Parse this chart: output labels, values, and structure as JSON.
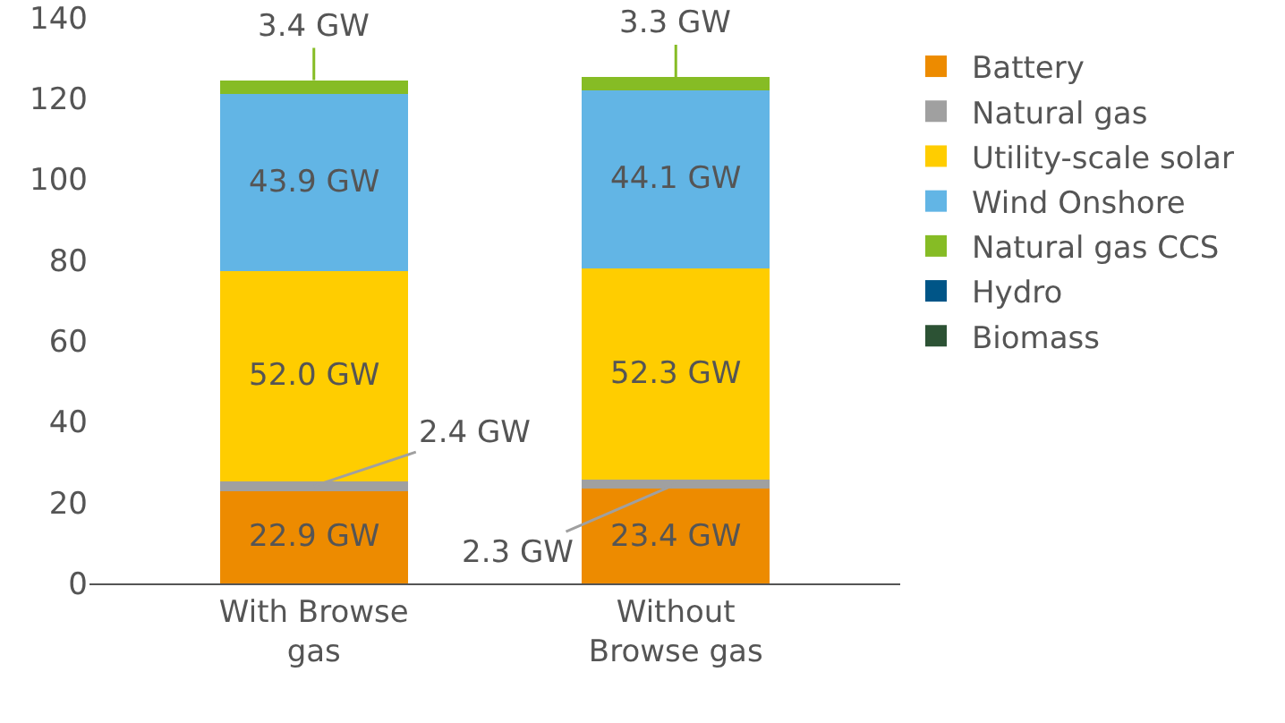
{
  "chart_data": {
    "type": "bar",
    "stacked": true,
    "categories": [
      "With Browse\ngas",
      "Without\nBrowse gas"
    ],
    "series": [
      {
        "name": "Battery",
        "color": "#ed8b00",
        "values": [
          22.9,
          23.4
        ],
        "value_labels": [
          "22.9 GW",
          "23.4 GW"
        ]
      },
      {
        "name": "Natural gas",
        "color": "#a0a0a0",
        "values": [
          2.4,
          2.3
        ],
        "value_labels": [
          "2.4 GW",
          "2.3 GW"
        ]
      },
      {
        "name": "Utility-scale solar",
        "color": "#ffcd00",
        "values": [
          52.0,
          52.3
        ],
        "value_labels": [
          "52.0 GW",
          "52.3 GW"
        ]
      },
      {
        "name": "Wind Onshore",
        "color": "#62b5e5",
        "values": [
          43.9,
          44.1
        ],
        "value_labels": [
          "43.9 GW",
          "44.1 GW"
        ]
      },
      {
        "name": "Natural gas CCS",
        "color": "#86bc25",
        "values": [
          3.4,
          3.3
        ],
        "value_labels": [
          "3.4 GW",
          "3.3 GW"
        ]
      },
      {
        "name": "Hydro",
        "color": "#005587",
        "values": [
          0,
          0
        ]
      },
      {
        "name": "Biomass",
        "color": "#2c5234",
        "values": [
          0,
          0
        ]
      }
    ],
    "ylim": [
      0,
      140
    ],
    "yticks": [
      0,
      20,
      40,
      60,
      80,
      100,
      120,
      140
    ],
    "grid": false,
    "legend": "right"
  }
}
